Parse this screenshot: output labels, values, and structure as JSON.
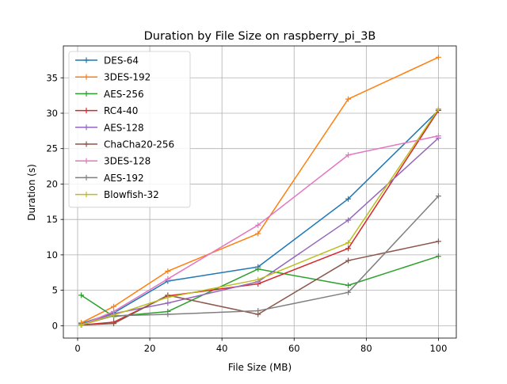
{
  "chart_data": {
    "type": "line",
    "title": "Duration by File Size on raspberry_pi_3B",
    "xlabel": "File Size (MB)",
    "ylabel": "Duration (s)",
    "xlim": [
      -3.95,
      104.95
    ],
    "ylim": [
      -1.75,
      39.5
    ],
    "xticks": [
      0,
      20,
      40,
      60,
      80,
      100
    ],
    "yticks": [
      0,
      5,
      10,
      15,
      20,
      25,
      30,
      35
    ],
    "grid": true,
    "legend_position": "top-left",
    "x": [
      1,
      10,
      25,
      50,
      75,
      100
    ],
    "series": [
      {
        "name": "DES-64",
        "color": "#1f77b4",
        "values": [
          0.3,
          1.8,
          6.3,
          8.3,
          17.9,
          30.4
        ]
      },
      {
        "name": "3DES-192",
        "color": "#ff7f0e",
        "values": [
          0.4,
          2.7,
          7.7,
          13.0,
          32.0,
          37.9
        ]
      },
      {
        "name": "AES-256",
        "color": "#2ca02c",
        "values": [
          4.3,
          1.3,
          2.0,
          8.0,
          5.7,
          9.8
        ]
      },
      {
        "name": "RC4-40",
        "color": "#d62728",
        "values": [
          0.1,
          0.5,
          4.2,
          5.9,
          10.9,
          30.4
        ]
      },
      {
        "name": "AES-128",
        "color": "#9467bd",
        "values": [
          0.1,
          1.7,
          3.2,
          6.2,
          14.9,
          26.5
        ]
      },
      {
        "name": "ChaCha20-256",
        "color": "#8c564b",
        "values": [
          0.1,
          0.3,
          4.3,
          1.6,
          9.2,
          11.9
        ]
      },
      {
        "name": "3DES-128",
        "color": "#e377c2",
        "values": [
          0.1,
          2.0,
          6.6,
          14.2,
          24.1,
          26.8
        ]
      },
      {
        "name": "AES-192",
        "color": "#7f7f7f",
        "values": [
          0.1,
          1.4,
          1.6,
          2.1,
          4.7,
          18.3
        ]
      },
      {
        "name": "Blowfish-32",
        "color": "#bcbd22",
        "values": [
          0.1,
          1.5,
          4.0,
          6.5,
          11.7,
          30.6
        ]
      }
    ]
  }
}
